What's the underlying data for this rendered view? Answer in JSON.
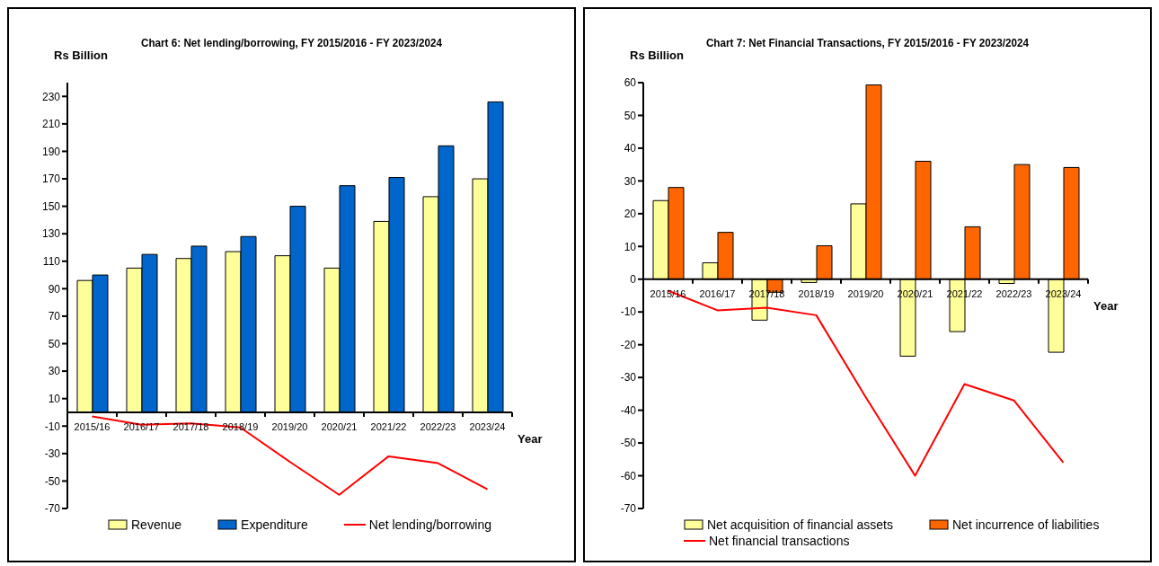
{
  "chart_data": [
    {
      "type": "bar",
      "title": "Chart 6: Net lending/borrowing, FY 2015/2016  - FY 2023/2024",
      "ylabel": "Rs Billion",
      "xlabel": "Year",
      "categories": [
        "2015/16",
        "2016/17",
        "2017/18",
        "2018/19",
        "2019/20",
        "2020/21",
        "2021/22",
        "2022/23",
        "2023/24"
      ],
      "series": [
        {
          "name": "Revenue",
          "color": "#ffff99",
          "values": [
            96,
            105,
            112,
            117,
            114,
            105,
            139,
            157,
            170
          ]
        },
        {
          "name": "Expenditure",
          "color": "#0066cc",
          "values": [
            100,
            115,
            121,
            128,
            150,
            165,
            171,
            194,
            226
          ]
        },
        {
          "name": "Net lending/borrowing",
          "type": "line",
          "color": "#ff0000",
          "values": [
            -3,
            -9,
            -8,
            -11,
            -36,
            -60,
            -32,
            -37,
            -56
          ]
        }
      ],
      "ylim": [
        -70,
        240
      ],
      "yticks": [
        -70,
        -50,
        -30,
        -10,
        10,
        30,
        50,
        70,
        90,
        110,
        130,
        150,
        170,
        190,
        210,
        230
      ],
      "legend": "bottom",
      "grid": false
    },
    {
      "type": "bar",
      "title": "Chart 7: Net Financial Transactions, FY 2015/2016 - FY 2023/2024",
      "ylabel": "Rs Billion",
      "xlabel": "Year",
      "categories": [
        "2015/16",
        "2016/17",
        "2017/18",
        "2018/19",
        "2019/20",
        "2020/21",
        "2021/22",
        "2022/23",
        "2023/24"
      ],
      "series": [
        {
          "name": "Net acquisition of financial assets",
          "color": "#ffff99",
          "values": [
            24,
            5,
            -12.5,
            -1,
            23,
            -23.5,
            -16,
            -1.3,
            -22.3
          ]
        },
        {
          "name": "Net incurrence of liabilities",
          "color": "#ff6600",
          "values": [
            28,
            14.3,
            -4,
            10.2,
            59.3,
            36,
            16,
            35,
            34.1
          ]
        },
        {
          "name": "Net financial transactions",
          "type": "line",
          "color": "#ff0000",
          "values": [
            -3.5,
            -9.5,
            -8.7,
            -11,
            -36,
            -60,
            -32,
            -37,
            -56
          ]
        }
      ],
      "ylim": [
        -70,
        60
      ],
      "yticks": [
        -70,
        -60,
        -50,
        -40,
        -30,
        -20,
        -10,
        0,
        10,
        20,
        30,
        40,
        50,
        60
      ],
      "legend": "bottom",
      "grid": false
    }
  ]
}
